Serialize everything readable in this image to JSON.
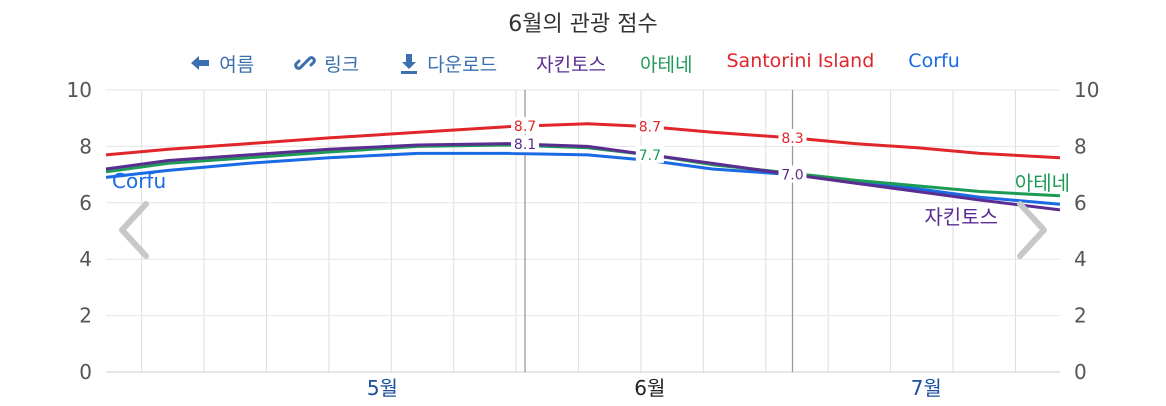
{
  "title": "6월의 관광 점수",
  "toolbar": {
    "summer_label": "여름",
    "link_label": "링크",
    "download_label": "다운로드",
    "icon_color": "#3a6fb0"
  },
  "chart_data": {
    "type": "line",
    "title": "6월의 관광 점수",
    "ylim": [
      0,
      10
    ],
    "yticks": [
      0,
      2,
      4,
      6,
      8,
      10
    ],
    "xrange": [
      "2025-04-15",
      "2025-07-31"
    ],
    "month_labels": [
      {
        "label": "5월",
        "date": "2025-05-16",
        "color": "#1a4fa0"
      },
      {
        "label": "6월",
        "date": "2025-06-15",
        "color": "#222222"
      },
      {
        "label": "7월",
        "date": "2025-07-16",
        "color": "#1a4fa0"
      }
    ],
    "highlight_lines": [
      "2025-06-01",
      "2025-07-01"
    ],
    "grid": true,
    "legend_position": "top",
    "series": [
      {
        "name": "자킨토스",
        "color": "#5b2d90",
        "end_label": "자킨토스",
        "points": [
          [
            "2025-04-15",
            7.2
          ],
          [
            "2025-04-22",
            7.5
          ],
          [
            "2025-05-01",
            7.7
          ],
          [
            "2025-05-10",
            7.9
          ],
          [
            "2025-05-20",
            8.05
          ],
          [
            "2025-05-30",
            8.1
          ],
          [
            "2025-06-08",
            8.0
          ],
          [
            "2025-06-15",
            7.7
          ],
          [
            "2025-06-22",
            7.4
          ],
          [
            "2025-07-01",
            7.0
          ],
          [
            "2025-07-08",
            6.7
          ],
          [
            "2025-07-15",
            6.4
          ],
          [
            "2025-07-22",
            6.1
          ],
          [
            "2025-07-31",
            5.75
          ]
        ],
        "data_labels": [
          {
            "date": "2025-06-01",
            "text": "8.1"
          },
          {
            "date": "2025-07-01",
            "text": "7.0"
          }
        ]
      },
      {
        "name": "아테네",
        "color": "#1e9a57",
        "end_label": "아테네",
        "points": [
          [
            "2025-04-15",
            7.1
          ],
          [
            "2025-04-22",
            7.4
          ],
          [
            "2025-05-01",
            7.6
          ],
          [
            "2025-05-10",
            7.8
          ],
          [
            "2025-05-20",
            8.0
          ],
          [
            "2025-05-30",
            8.05
          ],
          [
            "2025-06-08",
            7.95
          ],
          [
            "2025-06-15",
            7.7
          ],
          [
            "2025-06-22",
            7.35
          ],
          [
            "2025-07-01",
            7.05
          ],
          [
            "2025-07-08",
            6.8
          ],
          [
            "2025-07-15",
            6.6
          ],
          [
            "2025-07-22",
            6.4
          ],
          [
            "2025-07-31",
            6.25
          ]
        ],
        "data_labels": [
          {
            "date": "2025-06-15",
            "text": "7.7"
          }
        ]
      },
      {
        "name": "Santorini Island",
        "color": "#e0262b",
        "end_label": "",
        "points": [
          [
            "2025-04-15",
            7.7
          ],
          [
            "2025-04-22",
            7.9
          ],
          [
            "2025-05-01",
            8.1
          ],
          [
            "2025-05-10",
            8.3
          ],
          [
            "2025-05-20",
            8.5
          ],
          [
            "2025-05-30",
            8.7
          ],
          [
            "2025-06-08",
            8.8
          ],
          [
            "2025-06-15",
            8.7
          ],
          [
            "2025-06-22",
            8.5
          ],
          [
            "2025-07-01",
            8.3
          ],
          [
            "2025-07-08",
            8.1
          ],
          [
            "2025-07-15",
            7.95
          ],
          [
            "2025-07-22",
            7.75
          ],
          [
            "2025-07-31",
            7.6
          ]
        ],
        "data_labels": [
          {
            "date": "2025-06-01",
            "text": "8.7"
          },
          {
            "date": "2025-06-15",
            "text": "8.7"
          },
          {
            "date": "2025-07-01",
            "text": "8.3"
          }
        ]
      },
      {
        "name": "Corfu",
        "color": "#1a6ae6",
        "end_label": "Corfu",
        "points": [
          [
            "2025-04-15",
            6.9
          ],
          [
            "2025-04-22",
            7.15
          ],
          [
            "2025-05-01",
            7.4
          ],
          [
            "2025-05-10",
            7.6
          ],
          [
            "2025-05-20",
            7.75
          ],
          [
            "2025-05-30",
            7.75
          ],
          [
            "2025-06-08",
            7.7
          ],
          [
            "2025-06-15",
            7.5
          ],
          [
            "2025-06-22",
            7.2
          ],
          [
            "2025-07-01",
            7.0
          ],
          [
            "2025-07-08",
            6.75
          ],
          [
            "2025-07-15",
            6.5
          ],
          [
            "2025-07-22",
            6.2
          ],
          [
            "2025-07-31",
            5.95
          ]
        ],
        "data_labels": []
      }
    ]
  }
}
